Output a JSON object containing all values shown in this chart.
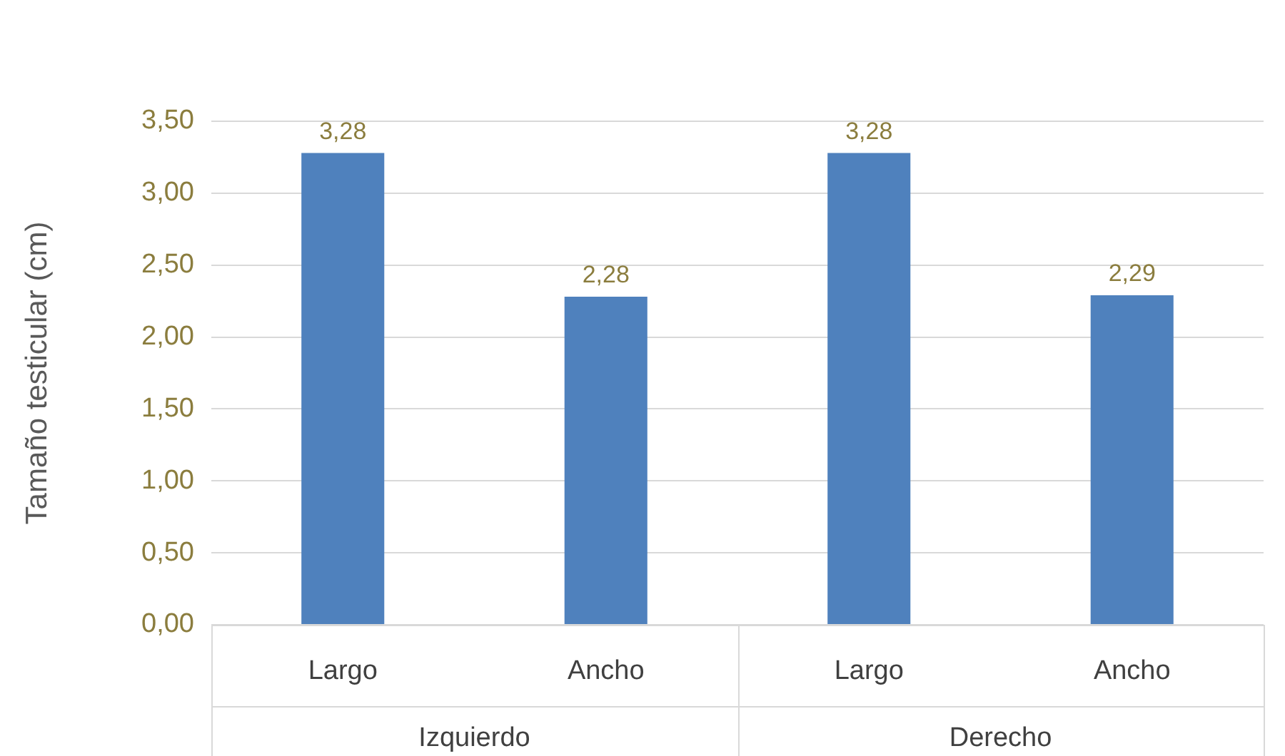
{
  "chart_data": {
    "type": "bar",
    "ylabel": "Tamaño testicular (cm)",
    "categories": [
      "Largo",
      "Ancho",
      "Largo",
      "Ancho"
    ],
    "values": [
      3.28,
      2.28,
      3.28,
      2.29
    ],
    "value_labels": [
      "3,28",
      "2,28",
      "3,28",
      "2,29"
    ],
    "color": "#4f81bd",
    "ylim": [
      0,
      3.5
    ],
    "yticks": [
      {
        "value": 0,
        "label": "0,00"
      },
      {
        "value": 0.5,
        "label": "0,50"
      },
      {
        "value": 1,
        "label": "1,00"
      },
      {
        "value": 1.5,
        "label": "1,50"
      },
      {
        "value": 2,
        "label": "2,00"
      },
      {
        "value": 2.5,
        "label": "2,50"
      },
      {
        "value": 3,
        "label": "3,00"
      },
      {
        "value": 3.5,
        "label": "3,50"
      }
    ],
    "grid": "y",
    "annotations": [
      "Izquierdo",
      "Derecho"
    ]
  }
}
